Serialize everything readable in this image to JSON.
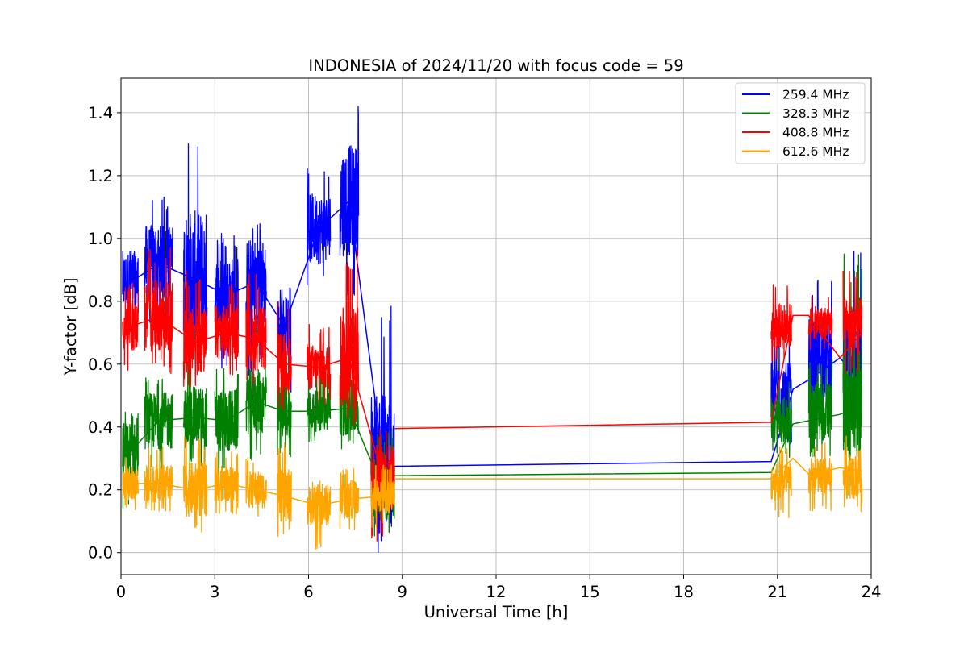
{
  "chart_data": {
    "type": "line",
    "title": "INDONESIA of 2024/11/20 with focus code = 59",
    "xlabel": "Universal Time [h]",
    "ylabel": "Y-factor [dB]",
    "xlim": [
      0,
      24
    ],
    "ylim": [
      -0.07,
      1.51
    ],
    "xticks": [
      0,
      3,
      6,
      9,
      12,
      15,
      18,
      21,
      24
    ],
    "yticks": [
      0.0,
      0.2,
      0.4,
      0.6,
      0.8,
      1.0,
      1.2,
      1.4
    ],
    "xtick_labels": [
      "0",
      "3",
      "6",
      "9",
      "12",
      "15",
      "18",
      "21",
      "24"
    ],
    "ytick_labels": [
      "0.0",
      "0.2",
      "0.4",
      "0.6",
      "0.8",
      "1.0",
      "1.2",
      "1.4"
    ],
    "grid": true,
    "legend_position": "top-right",
    "note": "Each series is a dense noisy trace; values below are envelope samples per time block [t_start, t_end, low, mean, high] read from the plot.",
    "series": [
      {
        "name": "259.4 MHz",
        "color": "#0000ff",
        "blocks": [
          [
            0.05,
            0.55,
            0.62,
            0.86,
            0.97
          ],
          [
            0.75,
            1.65,
            0.7,
            0.92,
            1.14
          ],
          [
            2.0,
            2.75,
            0.6,
            0.87,
            1.38
          ],
          [
            3.0,
            3.75,
            0.58,
            0.82,
            1.02
          ],
          [
            4.0,
            4.65,
            0.55,
            0.86,
            1.05
          ],
          [
            5.0,
            5.45,
            0.5,
            0.72,
            0.85
          ],
          [
            5.95,
            6.7,
            0.85,
            1.03,
            1.25
          ],
          [
            7.0,
            7.6,
            0.8,
            1.12,
            1.43
          ],
          [
            8.0,
            8.75,
            0.0,
            0.3,
            0.8
          ]
        ],
        "connector": [
          [
            8.75,
            0.275
          ],
          [
            20.8,
            0.29
          ],
          [
            21.5,
            0.52
          ],
          [
            22.0,
            0.55
          ],
          [
            23.0,
            0.62
          ],
          [
            23.7,
            0.54
          ]
        ],
        "blocks_late": [
          [
            20.8,
            21.45,
            0.33,
            0.5,
            0.7
          ],
          [
            22.0,
            22.75,
            0.4,
            0.62,
            0.88
          ],
          [
            23.1,
            23.7,
            0.45,
            0.62,
            0.97
          ]
        ]
      },
      {
        "name": "328.3 MHz",
        "color": "#008000",
        "blocks": [
          [
            0.05,
            0.55,
            0.11,
            0.32,
            0.45
          ],
          [
            0.75,
            1.65,
            0.25,
            0.42,
            0.57
          ],
          [
            2.0,
            2.75,
            0.26,
            0.43,
            0.61
          ],
          [
            3.0,
            3.75,
            0.24,
            0.42,
            0.6
          ],
          [
            4.0,
            4.65,
            0.28,
            0.48,
            0.65
          ],
          [
            5.0,
            5.45,
            0.3,
            0.45,
            0.6
          ],
          [
            5.95,
            6.7,
            0.35,
            0.45,
            0.58
          ],
          [
            7.0,
            7.6,
            0.33,
            0.46,
            0.65
          ],
          [
            8.0,
            8.75,
            0.05,
            0.2,
            0.4
          ]
        ],
        "connector": [
          [
            8.75,
            0.245
          ],
          [
            20.8,
            0.255
          ],
          [
            21.5,
            0.41
          ],
          [
            22.0,
            0.42
          ],
          [
            23.0,
            0.44
          ],
          [
            23.7,
            0.47
          ]
        ],
        "blocks_late": [
          [
            20.8,
            21.45,
            0.3,
            0.42,
            0.57
          ],
          [
            22.0,
            22.75,
            0.3,
            0.45,
            0.63
          ],
          [
            23.1,
            23.7,
            0.28,
            0.48,
            0.95
          ]
        ]
      },
      {
        "name": "408.8 MHz",
        "color": "#ff0000",
        "blocks": [
          [
            0.05,
            0.55,
            0.58,
            0.72,
            0.86
          ],
          [
            0.75,
            1.65,
            0.57,
            0.75,
            0.98
          ],
          [
            2.0,
            2.75,
            0.52,
            0.67,
            0.9
          ],
          [
            3.0,
            3.75,
            0.55,
            0.7,
            0.86
          ],
          [
            4.0,
            4.65,
            0.53,
            0.68,
            0.89
          ],
          [
            5.0,
            5.45,
            0.45,
            0.6,
            0.8
          ],
          [
            5.95,
            6.7,
            0.47,
            0.59,
            0.73
          ],
          [
            7.0,
            7.6,
            0.4,
            0.62,
            0.98
          ],
          [
            8.0,
            8.75,
            0.02,
            0.24,
            0.4
          ]
        ],
        "connector": [
          [
            8.75,
            0.395
          ],
          [
            20.8,
            0.415
          ],
          [
            21.5,
            0.755
          ],
          [
            22.0,
            0.755
          ],
          [
            23.0,
            0.62
          ],
          [
            23.7,
            0.7
          ]
        ],
        "blocks_late": [
          [
            20.8,
            21.45,
            0.6,
            0.72,
            0.86
          ],
          [
            22.0,
            22.75,
            0.63,
            0.73,
            0.82
          ],
          [
            23.1,
            23.7,
            0.57,
            0.72,
            0.9
          ]
        ]
      },
      {
        "name": "612.6 MHz",
        "color": "#ffa500",
        "blocks": [
          [
            0.05,
            0.55,
            0.13,
            0.22,
            0.32
          ],
          [
            0.75,
            1.65,
            0.13,
            0.22,
            0.34
          ],
          [
            2.0,
            2.75,
            0.06,
            0.2,
            0.37
          ],
          [
            3.0,
            3.75,
            0.12,
            0.22,
            0.32
          ],
          [
            4.0,
            4.65,
            0.1,
            0.2,
            0.31
          ],
          [
            5.0,
            5.45,
            0.05,
            0.18,
            0.35
          ],
          [
            5.95,
            6.7,
            0.0,
            0.15,
            0.23
          ],
          [
            7.0,
            7.6,
            0.05,
            0.17,
            0.27
          ],
          [
            8.0,
            8.75,
            0.08,
            0.18,
            0.28
          ]
        ],
        "connector": [
          [
            8.75,
            0.235
          ],
          [
            20.8,
            0.235
          ],
          [
            21.5,
            0.3
          ],
          [
            22.0,
            0.25
          ],
          [
            23.0,
            0.27
          ],
          [
            23.7,
            0.26
          ]
        ],
        "blocks_late": [
          [
            20.8,
            21.45,
            0.11,
            0.23,
            0.34
          ],
          [
            22.0,
            22.75,
            0.13,
            0.24,
            0.35
          ],
          [
            23.1,
            23.7,
            0.12,
            0.25,
            0.4
          ]
        ]
      }
    ]
  }
}
